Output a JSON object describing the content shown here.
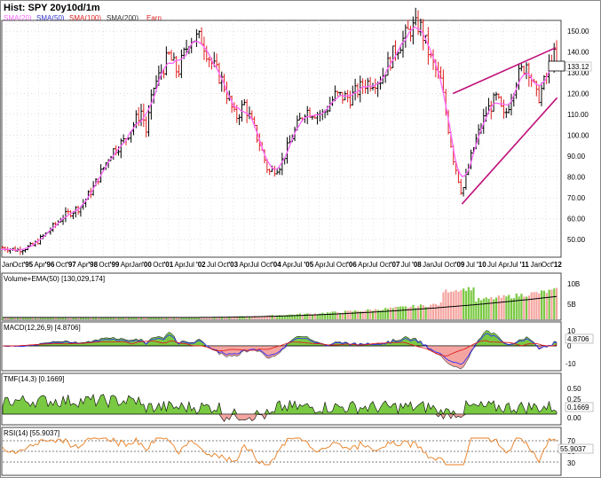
{
  "window_title": "Hist: SPY 20y10d/1m",
  "legend": [
    {
      "label": "SMA(20)",
      "color": "#ff66ff"
    },
    {
      "label": "SMA(50)",
      "color": "#3333cc"
    },
    {
      "label": "SMA(100)",
      "color": "#e02020"
    },
    {
      "label": "SMA(200)",
      "color": "#333333"
    },
    {
      "label": "Earn",
      "color": "#e02020"
    }
  ],
  "price_tag": "133.12",
  "y_ticks": [
    "150.00",
    "140.00",
    "130.00",
    "120.00",
    "110.00",
    "100.00",
    "90.00",
    "80.00",
    "70.00",
    "60.00",
    "50.00"
  ],
  "x_ticks": [
    {
      "label": "Jan",
      "bold": false
    },
    {
      "label": "Oct",
      "bold": false
    },
    {
      "label": "'95",
      "bold": true
    },
    {
      "label": "Apr",
      "bold": false
    },
    {
      "label": "'96",
      "bold": true
    },
    {
      "label": "Oct",
      "bold": false
    },
    {
      "label": "'97",
      "bold": true
    },
    {
      "label": "Apr",
      "bold": false
    },
    {
      "label": "'98",
      "bold": true
    },
    {
      "label": "Oct",
      "bold": false
    },
    {
      "label": "'99",
      "bold": true
    },
    {
      "label": "Apr",
      "bold": false
    },
    {
      "label": "Jan",
      "bold": false
    },
    {
      "label": "'00",
      "bold": true
    },
    {
      "label": "Oct",
      "bold": false
    },
    {
      "label": "'01",
      "bold": true
    },
    {
      "label": "Apr",
      "bold": false
    },
    {
      "label": "Jul",
      "bold": false
    },
    {
      "label": "'02",
      "bold": true
    },
    {
      "label": "Jul",
      "bold": false
    },
    {
      "label": "Oct",
      "bold": false
    },
    {
      "label": "'03",
      "bold": true
    },
    {
      "label": "Apr",
      "bold": false
    },
    {
      "label": "Jul",
      "bold": false
    },
    {
      "label": "Oct",
      "bold": false
    },
    {
      "label": "'04",
      "bold": true
    },
    {
      "label": "Apr",
      "bold": false
    },
    {
      "label": "Jul",
      "bold": false
    },
    {
      "label": "'05",
      "bold": true
    },
    {
      "label": "Apr",
      "bold": false
    },
    {
      "label": "Jul",
      "bold": false
    },
    {
      "label": "Oct",
      "bold": false
    },
    {
      "label": "'06",
      "bold": true
    },
    {
      "label": "Apr",
      "bold": false
    },
    {
      "label": "Jul",
      "bold": false
    },
    {
      "label": "Oct",
      "bold": false
    },
    {
      "label": "'07",
      "bold": true
    },
    {
      "label": "Jul",
      "bold": false
    },
    {
      "label": "'08",
      "bold": true
    },
    {
      "label": "Jan",
      "bold": false
    },
    {
      "label": "Jul",
      "bold": false
    },
    {
      "label": "Oct",
      "bold": false
    },
    {
      "label": "'09",
      "bold": true
    },
    {
      "label": "Jul",
      "bold": false
    },
    {
      "label": "'10",
      "bold": true
    },
    {
      "label": "Jul",
      "bold": false
    },
    {
      "label": "Apr",
      "bold": false
    },
    {
      "label": "Jul",
      "bold": false
    },
    {
      "label": "'11",
      "bold": true
    },
    {
      "label": "Jan",
      "bold": false
    },
    {
      "label": "Oct",
      "bold": false
    },
    {
      "label": "'12",
      "bold": true
    }
  ],
  "volume_panel": {
    "label": "Volume+EMA(50) [130,029,174]",
    "ticks": [
      "10B",
      "5B"
    ]
  },
  "macd_panel": {
    "label": "MACD(12,26,9) [4.8706]",
    "tag": "4.8706",
    "ticks": [
      "10",
      "0",
      "-10"
    ]
  },
  "tmf_panel": {
    "label": "TMF(14,3) [0.1669]",
    "tag": "0.1669",
    "ticks": [
      "0.50",
      "0.25",
      "0.00"
    ]
  },
  "rsi_panel": {
    "label": "RSI(14) [55.9037]",
    "tag": "55.9037",
    "ticks": [
      "70",
      "50",
      "30"
    ]
  },
  "chart_data": {
    "type": "candlestick",
    "title": "Hist: SPY 20y10d/1m",
    "ylim": [
      42,
      158
    ],
    "price_anchors": [
      {
        "t": 1994.0,
        "p": 46
      },
      {
        "t": 1994.5,
        "p": 45
      },
      {
        "t": 1995.0,
        "p": 47
      },
      {
        "t": 1995.6,
        "p": 55
      },
      {
        "t": 1996.0,
        "p": 61
      },
      {
        "t": 1996.6,
        "p": 66
      },
      {
        "t": 1997.0,
        "p": 75
      },
      {
        "t": 1997.6,
        "p": 92
      },
      {
        "t": 1998.0,
        "p": 97
      },
      {
        "t": 1998.6,
        "p": 112
      },
      {
        "t": 1998.75,
        "p": 102
      },
      {
        "t": 1999.0,
        "p": 123
      },
      {
        "t": 1999.5,
        "p": 138
      },
      {
        "t": 1999.8,
        "p": 130
      },
      {
        "t": 2000.2,
        "p": 147
      },
      {
        "t": 2000.6,
        "p": 146
      },
      {
        "t": 2000.9,
        "p": 135
      },
      {
        "t": 2001.3,
        "p": 125
      },
      {
        "t": 2001.7,
        "p": 108
      },
      {
        "t": 2002.0,
        "p": 115
      },
      {
        "t": 2002.5,
        "p": 96
      },
      {
        "t": 2002.8,
        "p": 82
      },
      {
        "t": 2003.2,
        "p": 86
      },
      {
        "t": 2003.6,
        "p": 100
      },
      {
        "t": 2004.0,
        "p": 112
      },
      {
        "t": 2004.6,
        "p": 110
      },
      {
        "t": 2005.0,
        "p": 119
      },
      {
        "t": 2005.5,
        "p": 118
      },
      {
        "t": 2006.0,
        "p": 125
      },
      {
        "t": 2006.5,
        "p": 127
      },
      {
        "t": 2007.0,
        "p": 141
      },
      {
        "t": 2007.5,
        "p": 151
      },
      {
        "t": 2007.8,
        "p": 153
      },
      {
        "t": 2008.2,
        "p": 135
      },
      {
        "t": 2008.5,
        "p": 126
      },
      {
        "t": 2008.9,
        "p": 90
      },
      {
        "t": 2009.2,
        "p": 72
      },
      {
        "t": 2009.6,
        "p": 95
      },
      {
        "t": 2010.0,
        "p": 111
      },
      {
        "t": 2010.35,
        "p": 118
      },
      {
        "t": 2010.6,
        "p": 108
      },
      {
        "t": 2011.0,
        "p": 127
      },
      {
        "t": 2011.35,
        "p": 135
      },
      {
        "t": 2011.7,
        "p": 117
      },
      {
        "t": 2012.0,
        "p": 128
      },
      {
        "t": 2012.2,
        "p": 140
      },
      {
        "t": 2012.35,
        "p": 133
      }
    ],
    "trendlines": [
      {
        "from": {
          "t": 2008.9,
          "p": 120
        },
        "to": {
          "t": 2012.3,
          "p": 142
        }
      },
      {
        "from": {
          "t": 2009.2,
          "p": 67
        },
        "to": {
          "t": 2012.35,
          "p": 118
        }
      }
    ],
    "last_price": 133.12,
    "indicators": {
      "volume_ema50": 130029174,
      "macd": 4.8706,
      "tmf": 0.1669,
      "rsi": 55.9037
    }
  }
}
